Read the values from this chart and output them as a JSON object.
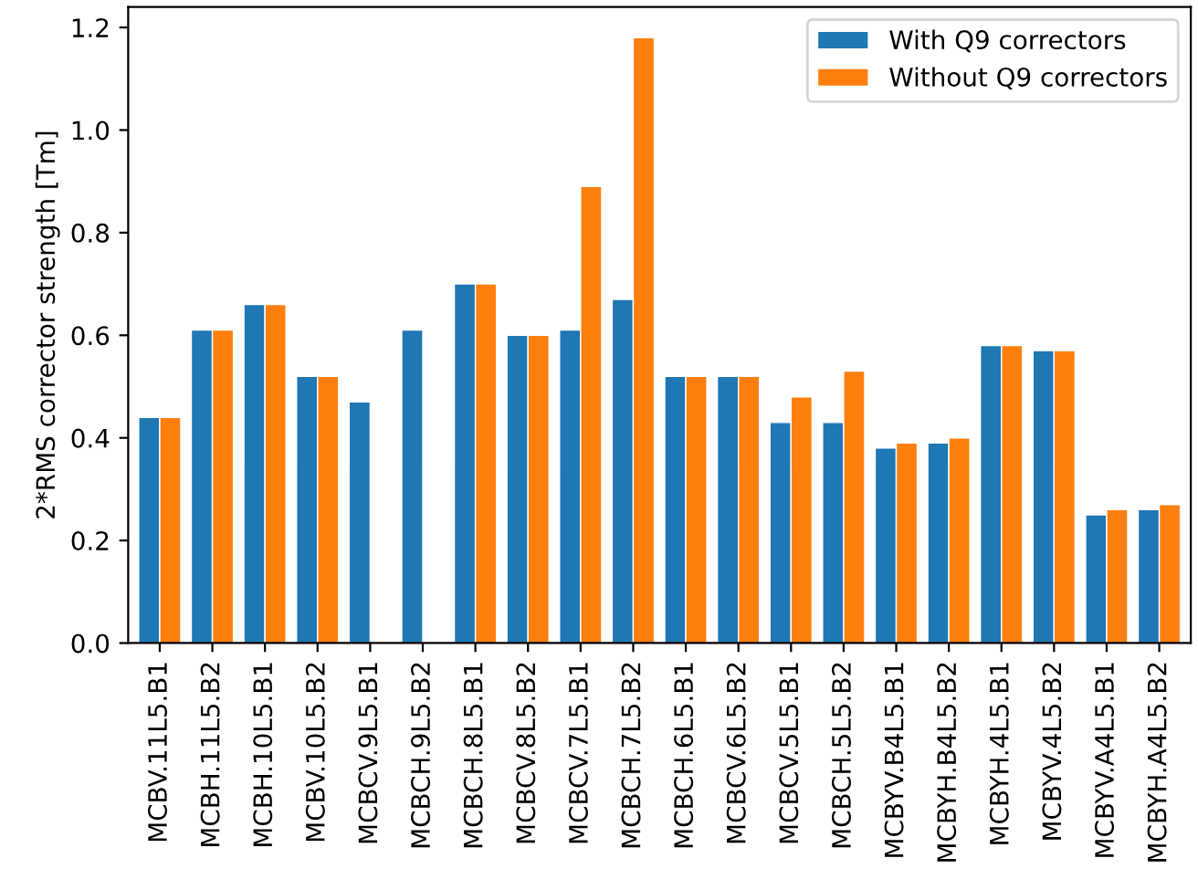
{
  "chart_data": {
    "type": "bar",
    "categories": [
      "MCBV.11L5.B1",
      "MCBH.11L5.B2",
      "MCBH.10L5.B1",
      "MCBV.10L5.B2",
      "MCBCV.9L5.B1",
      "MCBCH.9L5.B2",
      "MCBCH.8L5.B1",
      "MCBCV.8L5.B2",
      "MCBCV.7L5.B1",
      "MCBCH.7L5.B2",
      "MCBCH.6L5.B1",
      "MCBCV.6L5.B2",
      "MCBCV.5L5.B1",
      "MCBCH.5L5.B2",
      "MCBYV.B4L5.B1",
      "MCBYH.B4L5.B2",
      "MCBYH.4L5.B1",
      "MCBYV.4L5.B2",
      "MCBYV.A4L5.B1",
      "MCBYH.A4L5.B2"
    ],
    "series": [
      {
        "name": "With Q9 correctors",
        "color": "#1f77b4",
        "values": [
          0.44,
          0.61,
          0.66,
          0.52,
          0.47,
          0.61,
          0.7,
          0.6,
          0.61,
          0.67,
          0.52,
          0.52,
          0.43,
          0.43,
          0.38,
          0.39,
          0.58,
          0.57,
          0.25,
          0.26
        ]
      },
      {
        "name": "Without Q9 correctors",
        "color": "#ff7f0e",
        "values": [
          0.44,
          0.61,
          0.66,
          0.52,
          null,
          null,
          0.7,
          0.6,
          0.89,
          1.18,
          0.52,
          0.52,
          0.48,
          0.53,
          0.39,
          0.4,
          0.58,
          0.57,
          0.26,
          0.27
        ]
      }
    ],
    "ylabel": "2*RMS corrector strength [Tm]",
    "ylim": [
      0,
      1.24
    ],
    "yticks": [
      {
        "value": 0,
        "label": "0.0"
      },
      0.2,
      0.4,
      0.6,
      0.8,
      {
        "value": 1,
        "label": "1.0"
      },
      1.2
    ],
    "legend": "top right",
    "grid": false
  }
}
